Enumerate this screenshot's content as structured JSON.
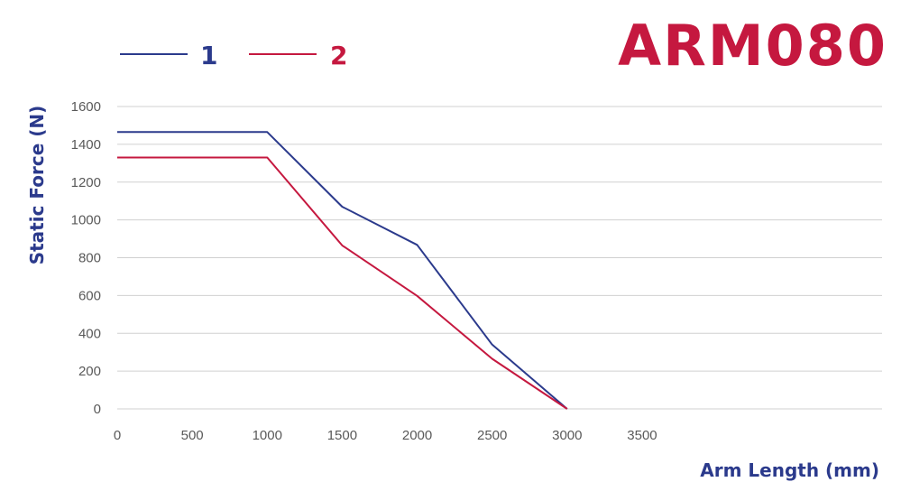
{
  "title": "ARM080",
  "colors": {
    "series_1": "#2b3a8c",
    "series_2": "#c5183f",
    "grid": "#d0d0d0",
    "tick_text": "#595959"
  },
  "chart_data": {
    "type": "line",
    "title": "ARM080",
    "xlabel": "Arm Length (mm)",
    "ylabel": "Static Force (N)",
    "xlim": [
      0,
      5100
    ],
    "ylim": [
      0,
      1600
    ],
    "x_ticks": [
      0,
      500,
      1000,
      1500,
      2000,
      2500,
      3000,
      3500
    ],
    "y_ticks": [
      0,
      200,
      400,
      600,
      800,
      1000,
      1200,
      1400,
      1600
    ],
    "grid": "horizontal",
    "legend_position": "top-left",
    "series": [
      {
        "name": "1",
        "color": "#2b3a8c",
        "points": [
          [
            0,
            1465
          ],
          [
            1000,
            1465
          ],
          [
            1500,
            1070
          ],
          [
            2000,
            868
          ],
          [
            2500,
            340
          ],
          [
            3000,
            0
          ]
        ]
      },
      {
        "name": "2",
        "color": "#c5183f",
        "points": [
          [
            0,
            1330
          ],
          [
            1000,
            1330
          ],
          [
            1500,
            865
          ],
          [
            2000,
            598
          ],
          [
            2500,
            265
          ],
          [
            3000,
            0
          ]
        ]
      }
    ]
  }
}
